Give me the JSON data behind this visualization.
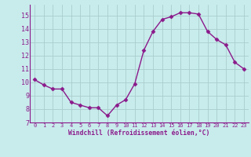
{
  "x": [
    0,
    1,
    2,
    3,
    4,
    5,
    6,
    7,
    8,
    9,
    10,
    11,
    12,
    13,
    14,
    15,
    16,
    17,
    18,
    19,
    20,
    21,
    22,
    23
  ],
  "y": [
    10.2,
    9.8,
    9.5,
    9.5,
    8.5,
    8.3,
    8.1,
    8.1,
    7.5,
    8.3,
    8.7,
    9.9,
    12.4,
    13.8,
    14.7,
    14.9,
    15.2,
    15.2,
    15.1,
    13.8,
    13.2,
    12.8,
    11.5,
    11.0
  ],
  "line_color": "#8b1a8b",
  "marker": "D",
  "markersize": 2.5,
  "linewidth": 1.0,
  "bg_color": "#c8ecec",
  "grid_color": "#aacccc",
  "xlabel": "Windchill (Refroidissement éolien,°C)",
  "xlabel_color": "#8b1a8b",
  "tick_color": "#8b1a8b",
  "spine_color": "#8b1a8b",
  "xlim": [
    -0.5,
    23.5
  ],
  "ylim": [
    7,
    15.8
  ],
  "yticks": [
    7,
    8,
    9,
    10,
    11,
    12,
    13,
    14,
    15
  ],
  "xticks": [
    0,
    1,
    2,
    3,
    4,
    5,
    6,
    7,
    8,
    9,
    10,
    11,
    12,
    13,
    14,
    15,
    16,
    17,
    18,
    19,
    20,
    21,
    22,
    23
  ],
  "xlabel_fontsize": 5.8,
  "xtick_fontsize": 5.0,
  "ytick_fontsize": 6.0
}
